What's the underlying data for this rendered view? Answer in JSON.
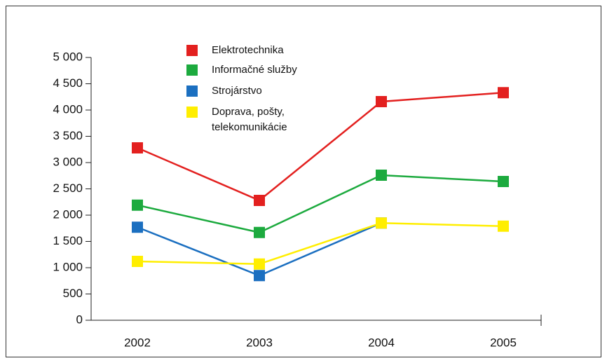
{
  "chart_data": {
    "type": "line",
    "categories": [
      "2002",
      "2003",
      "2004",
      "2005"
    ],
    "series": [
      {
        "name": "Elektrotechnika",
        "color": "#e3201f",
        "values": [
          3280,
          2280,
          4160,
          4330
        ]
      },
      {
        "name": "Informačné služby",
        "color": "#1caa3e",
        "values": [
          2190,
          1670,
          2760,
          2640
        ]
      },
      {
        "name": "Strojárstvo",
        "color": "#1b6fc0",
        "values": [
          1770,
          850,
          1850,
          null
        ]
      },
      {
        "name": "Doprava, pošty, telekomunikácie",
        "color": "#ffee00",
        "values": [
          1120,
          1070,
          1850,
          1790
        ]
      }
    ],
    "ylim": [
      0,
      5000
    ],
    "yticks": [
      0,
      500,
      {
        "value": 1000,
        "label": "1 000"
      },
      {
        "value": 1500,
        "label": "1 500"
      },
      {
        "value": 2000,
        "label": "2 000"
      },
      {
        "value": 2500,
        "label": "2 500"
      },
      {
        "value": 3000,
        "label": "3 000"
      },
      {
        "value": 3500,
        "label": "3 500"
      },
      {
        "value": 4000,
        "label": "4 000"
      },
      {
        "value": 4500,
        "label": "4 500"
      },
      {
        "value": 5000,
        "label": "5 000"
      }
    ],
    "legend": "top-left"
  }
}
